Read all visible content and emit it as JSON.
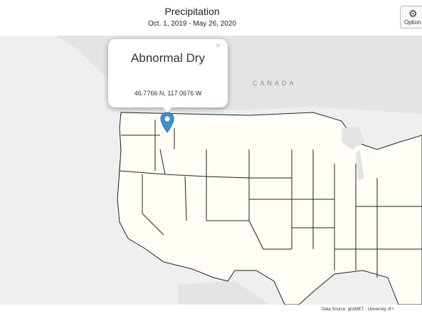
{
  "header": {
    "title": "Precipitation",
    "subtitle": "Oct. 1, 2019 - May 26, 2020"
  },
  "options_button": {
    "icon": "gear-icon",
    "label": "Option"
  },
  "map": {
    "country_label": "CANADA",
    "attribution": "Data Source: gridMET - University of I"
  },
  "popup": {
    "category": "Abnormal Dry",
    "coordinates": "46.7766 N, 117.0676 W",
    "close_symbol": "×"
  },
  "colors": {
    "exceptional_dry": "#7a1a0c",
    "severe_dry": "#c8472a",
    "moderate_dry": "#f2a33a",
    "abnormal_dry": "#fde06a",
    "near_normal": "#fffdf6",
    "abnormal_wet": "#8fe07a",
    "moderate_wet": "#38c8ea",
    "severe_wet": "#2f5fd2",
    "extreme_wet": "#152c96",
    "marker": "#3d8fcf"
  }
}
